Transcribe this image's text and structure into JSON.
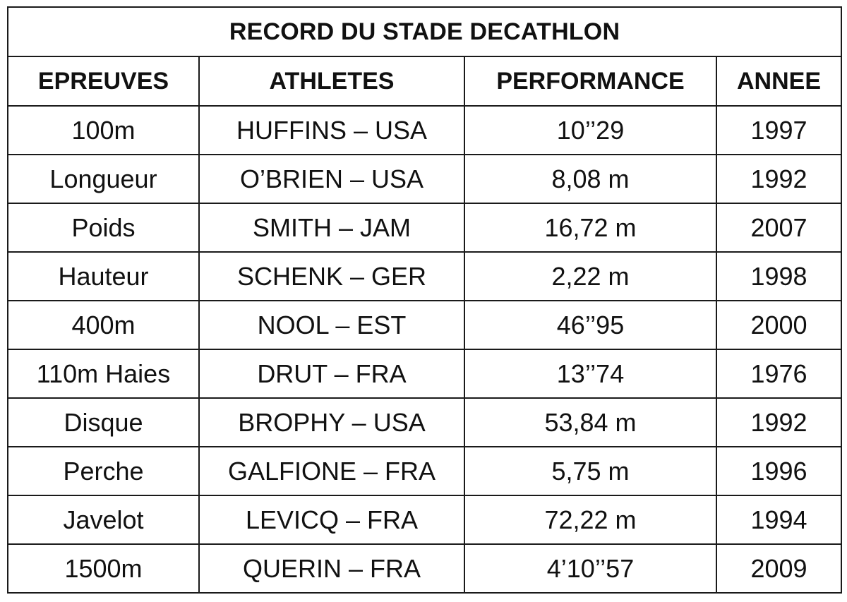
{
  "table": {
    "title": "RECORD DU STADE DECATHLON",
    "headers": [
      "EPREUVES",
      "ATHLETES",
      "PERFORMANCE",
      "ANNEE"
    ],
    "rows": [
      [
        "100m",
        "HUFFINS – USA",
        "10’’29",
        "1997"
      ],
      [
        "Longueur",
        "O’BRIEN – USA",
        "8,08 m",
        "1992"
      ],
      [
        "Poids",
        "SMITH – JAM",
        "16,72 m",
        "2007"
      ],
      [
        "Hauteur",
        "SCHENK – GER",
        "2,22 m",
        "1998"
      ],
      [
        "400m",
        "NOOL – EST",
        "46’’95",
        "2000"
      ],
      [
        "110m Haies",
        "DRUT – FRA",
        "13’’74",
        "1976"
      ],
      [
        "Disque",
        "BROPHY – USA",
        "53,84 m",
        "1992"
      ],
      [
        "Perche",
        "GALFIONE – FRA",
        "5,75 m",
        "1996"
      ],
      [
        "Javelot",
        "LEVICQ – FRA",
        "72,22 m",
        "1994"
      ],
      [
        "1500m",
        "QUERIN – FRA",
        "4’10’’57",
        "2009"
      ]
    ]
  }
}
